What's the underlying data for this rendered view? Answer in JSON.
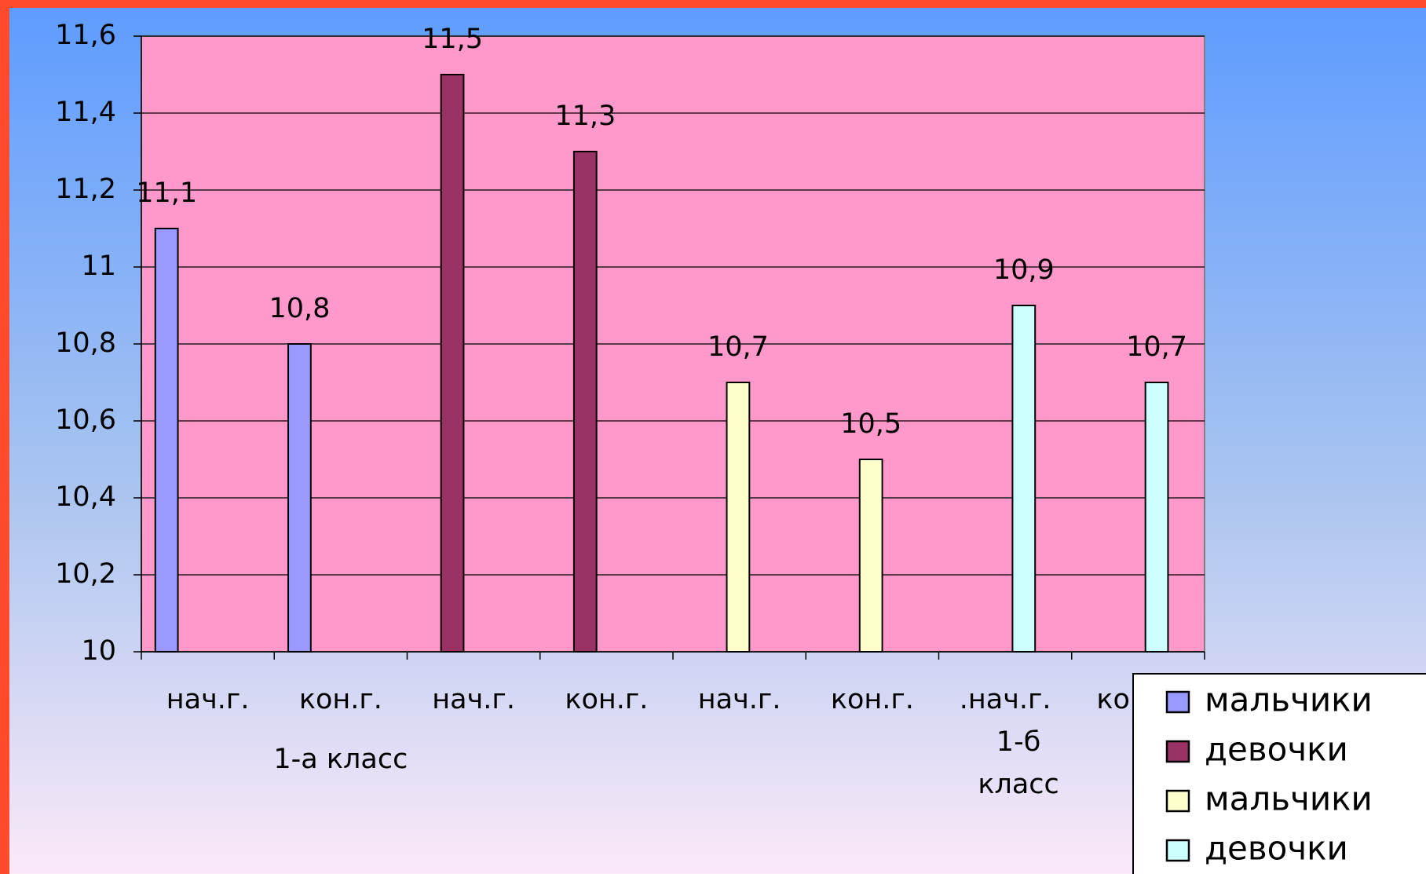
{
  "chart_data": {
    "type": "bar",
    "categories": [
      "нач.г.",
      "кон.г.",
      "нач.г.",
      "кон.г.",
      "нач.г.",
      "кон.г.",
      ".нач.г.",
      "кон.г."
    ],
    "group_labels": [
      "1-а класс",
      "1-б класс"
    ],
    "series": [
      {
        "name": "мальчики",
        "color": "#9999ff",
        "values": [
          11.1,
          10.8,
          null,
          null,
          null,
          null,
          null,
          null
        ],
        "value_labels": [
          "11,1",
          "10,8",
          null,
          null,
          null,
          null,
          null,
          null
        ]
      },
      {
        "name": "девочки",
        "color": "#993366",
        "values": [
          null,
          null,
          11.5,
          11.3,
          null,
          null,
          null,
          null
        ],
        "value_labels": [
          null,
          null,
          "11,5",
          "11,3",
          null,
          null,
          null,
          null
        ]
      },
      {
        "name": "мальчики",
        "color": "#ffffcc",
        "values": [
          null,
          null,
          null,
          null,
          10.7,
          10.5,
          null,
          null
        ],
        "value_labels": [
          null,
          null,
          null,
          null,
          "10,7",
          "10,5",
          null,
          null
        ]
      },
      {
        "name": "девочки",
        "color": "#ccffff",
        "values": [
          null,
          null,
          null,
          null,
          null,
          null,
          10.9,
          10.7
        ],
        "value_labels": [
          null,
          null,
          null,
          null,
          null,
          null,
          "10,9",
          "10,7"
        ]
      }
    ],
    "ylim": [
      10,
      11.6
    ],
    "yticks": [
      10,
      {
        "value": 10.2,
        "label": "10,2"
      },
      {
        "value": 10.4,
        "label": "10,4"
      },
      {
        "value": 10.6,
        "label": "10,6"
      },
      {
        "value": 10.8,
        "label": "10,8"
      },
      11,
      {
        "value": 11.2,
        "label": "11,2"
      },
      {
        "value": 11.4,
        "label": "11,4"
      },
      {
        "value": 11.6,
        "label": "11,6"
      }
    ],
    "grid": true,
    "plot_color": "#ff99cc"
  }
}
